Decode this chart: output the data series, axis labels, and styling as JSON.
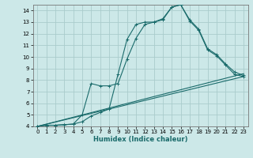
{
  "title": "",
  "xlabel": "Humidex (Indice chaleur)",
  "background_color": "#cce8e8",
  "grid_color": "#aacccc",
  "line_color": "#1a6b6b",
  "xlim": [
    -0.5,
    23.5
  ],
  "ylim": [
    4,
    14.5
  ],
  "xticks": [
    0,
    1,
    2,
    3,
    4,
    5,
    6,
    7,
    8,
    9,
    10,
    11,
    12,
    13,
    14,
    15,
    16,
    17,
    18,
    19,
    20,
    21,
    22,
    23
  ],
  "yticks": [
    4,
    5,
    6,
    7,
    8,
    9,
    10,
    11,
    12,
    13,
    14
  ],
  "series1_x": [
    0,
    1,
    2,
    3,
    4,
    5,
    6,
    7,
    8,
    9,
    10,
    11,
    12,
    13,
    14,
    15,
    16,
    17,
    18,
    19,
    20,
    21,
    22,
    23
  ],
  "series1_y": [
    4.0,
    4.1,
    4.1,
    4.15,
    4.2,
    4.4,
    4.9,
    5.2,
    5.5,
    8.5,
    11.5,
    12.8,
    13.0,
    13.0,
    13.2,
    14.3,
    14.5,
    13.1,
    12.3,
    10.6,
    10.1,
    9.3,
    8.5,
    8.3
  ],
  "series2_x": [
    0,
    1,
    2,
    3,
    4,
    5,
    6,
    7,
    8,
    9,
    10,
    11,
    12,
    13,
    14,
    15,
    16,
    17,
    18,
    19,
    20,
    21,
    22,
    23
  ],
  "series2_y": [
    4.0,
    4.1,
    4.1,
    4.15,
    4.2,
    5.0,
    7.7,
    7.5,
    7.5,
    7.7,
    9.8,
    11.6,
    12.8,
    13.0,
    13.3,
    14.3,
    14.5,
    13.2,
    12.4,
    10.7,
    10.2,
    9.4,
    8.7,
    8.4
  ],
  "line1_x": [
    0,
    23
  ],
  "line1_y": [
    4.0,
    8.3
  ],
  "line2_x": [
    0,
    23
  ],
  "line2_y": [
    4.0,
    8.55
  ]
}
